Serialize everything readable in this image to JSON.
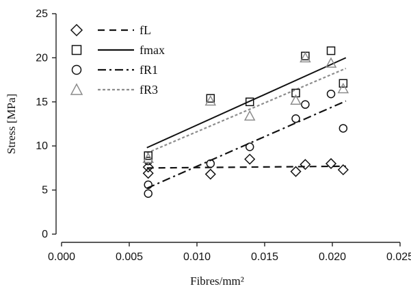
{
  "chart_data": {
    "type": "scatter",
    "title": "",
    "xlabel": "Fibres/mm²",
    "ylabel": "Stress [MPa]",
    "xlim": [
      0.0,
      0.025
    ],
    "ylim": [
      0,
      25
    ],
    "xticks": [
      "0.000",
      "0.005",
      "0.010",
      "0.015",
      "0.020",
      "0.025"
    ],
    "yticks": [
      "0",
      "5",
      "10",
      "15",
      "20",
      "25"
    ],
    "grid": false,
    "legend_position": "top-left",
    "series": [
      {
        "name": "fL",
        "marker": "diamond",
        "line": "dashed",
        "color": "#111111",
        "points": [
          [
            0.0064,
            6.9
          ],
          [
            0.0064,
            7.6
          ],
          [
            0.011,
            6.8
          ],
          [
            0.0139,
            8.5
          ],
          [
            0.0173,
            7.1
          ],
          [
            0.018,
            7.9
          ],
          [
            0.0199,
            8.0
          ],
          [
            0.0208,
            7.3
          ]
        ],
        "fit": [
          [
            0.0063,
            7.5
          ],
          [
            0.021,
            7.7
          ]
        ]
      },
      {
        "name": "fmax",
        "marker": "square",
        "line": "solid",
        "color": "#111111",
        "points": [
          [
            0.0064,
            8.9
          ],
          [
            0.011,
            15.4
          ],
          [
            0.0139,
            15.0
          ],
          [
            0.0173,
            16.0
          ],
          [
            0.018,
            20.2
          ],
          [
            0.0199,
            20.8
          ],
          [
            0.0208,
            17.1
          ]
        ],
        "fit": [
          [
            0.0063,
            9.8
          ],
          [
            0.021,
            20.0
          ]
        ]
      },
      {
        "name": "fR1",
        "marker": "circle",
        "line": "dash-dot",
        "color": "#111111",
        "points": [
          [
            0.0064,
            8.3
          ],
          [
            0.0064,
            5.6
          ],
          [
            0.0064,
            4.6
          ],
          [
            0.011,
            8.0
          ],
          [
            0.0139,
            9.9
          ],
          [
            0.0173,
            13.1
          ],
          [
            0.018,
            14.7
          ],
          [
            0.0199,
            15.9
          ],
          [
            0.0208,
            12.0
          ]
        ],
        "fit": [
          [
            0.0063,
            5.2
          ],
          [
            0.021,
            15.1
          ]
        ]
      },
      {
        "name": "fR3",
        "marker": "triangle",
        "line": "dotted",
        "color": "#8c8c8c",
        "points": [
          [
            0.0064,
            8.6
          ],
          [
            0.011,
            15.1
          ],
          [
            0.0139,
            13.4
          ],
          [
            0.0173,
            15.2
          ],
          [
            0.018,
            20.0
          ],
          [
            0.0199,
            19.4
          ],
          [
            0.0208,
            16.5
          ]
        ],
        "fit": [
          [
            0.0063,
            9.2
          ],
          [
            0.021,
            18.8
          ]
        ]
      }
    ]
  }
}
